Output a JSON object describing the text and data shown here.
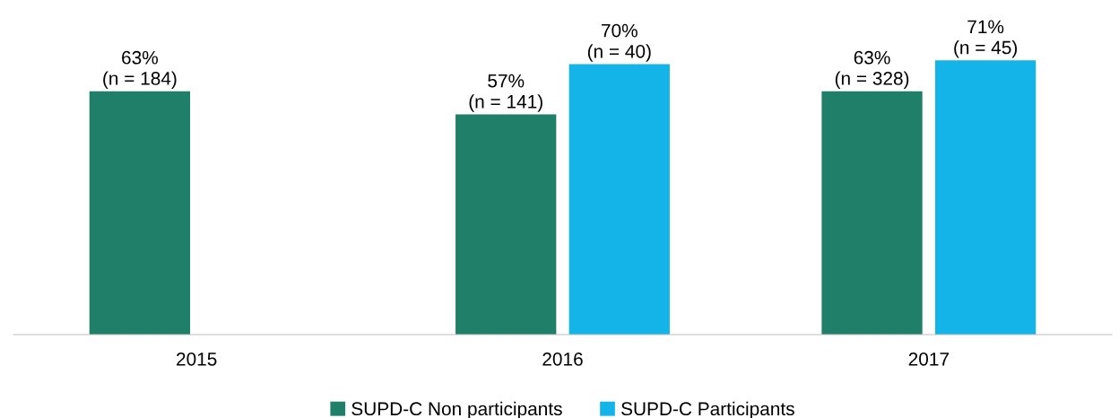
{
  "chart_data": {
    "type": "bar",
    "categories": [
      "2015",
      "2016",
      "2017"
    ],
    "series": [
      {
        "name": "SUPD-C Non participants",
        "color": "#1f7f68",
        "values": [
          63,
          57,
          63
        ],
        "value_labels": [
          "63%\n(n = 184)",
          "57%\n(n = 141)",
          "63%\n(n = 328)"
        ]
      },
      {
        "name": "SUPD-C Participants",
        "color": "#14b3e8",
        "values": [
          null,
          70,
          71
        ],
        "value_labels": [
          null,
          "70%\n(n = 40)",
          "71%\n(n = 45)"
        ]
      }
    ],
    "tick_labels": "x",
    "grid": false,
    "legend": "bottom"
  }
}
